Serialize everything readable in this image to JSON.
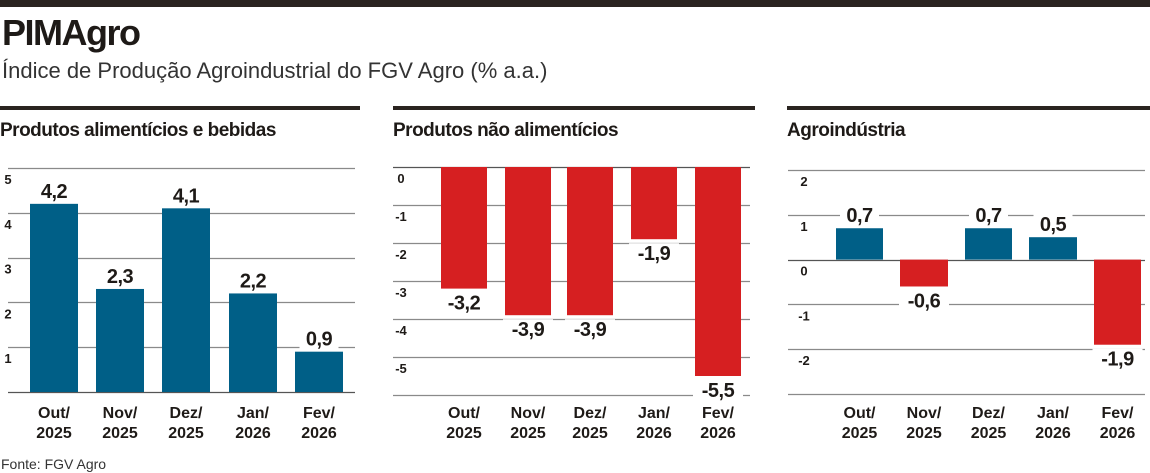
{
  "header": {
    "title": "PIMAgro",
    "subtitle": "Índice de Produção Agroindustrial do FGV Agro (% a.a.)"
  },
  "source": "Fonte: FGV Agro",
  "colors": {
    "positive": "#005f87",
    "negative": "#d61f21",
    "rule": "#2a2420",
    "grid": "#8a8a8a"
  },
  "chart_data": [
    {
      "type": "bar",
      "title": "Produtos alimentícios e bebidas",
      "categories": [
        [
          "Out/",
          "2025"
        ],
        [
          "Nov/",
          "2025"
        ],
        [
          "Dez/",
          "2025"
        ],
        [
          "Jan/",
          "2026"
        ],
        [
          "Fev/",
          "2026"
        ]
      ],
      "values": [
        4.2,
        2.3,
        4.1,
        2.2,
        0.9
      ],
      "data_labels": [
        "4,2",
        "2,3",
        "4,1",
        "2,2",
        "0,9"
      ],
      "yticks": [
        1,
        2,
        3,
        4,
        5
      ],
      "ylim": [
        0,
        5
      ],
      "grid": true
    },
    {
      "type": "bar",
      "title": "Produtos não alimentícios",
      "categories": [
        [
          "Out/",
          "2025"
        ],
        [
          "Nov/",
          "2025"
        ],
        [
          "Dez/",
          "2025"
        ],
        [
          "Jan/",
          "2026"
        ],
        [
          "Fev/",
          "2026"
        ]
      ],
      "values": [
        -3.2,
        -3.9,
        -3.9,
        -1.9,
        -5.5
      ],
      "data_labels": [
        "-3,2",
        "-3,9",
        "-3,9",
        "-1,9",
        "-5,5"
      ],
      "yticks": [
        0,
        -1,
        -2,
        -3,
        -4,
        -5
      ],
      "ylim": [
        -6,
        0
      ],
      "grid": true
    },
    {
      "type": "bar",
      "title": "Agroindústria",
      "categories": [
        [
          "Out/",
          "2025"
        ],
        [
          "Nov/",
          "2025"
        ],
        [
          "Dez/",
          "2025"
        ],
        [
          "Jan/",
          "2026"
        ],
        [
          "Fev/",
          "2026"
        ]
      ],
      "values": [
        0.7,
        -0.6,
        0.7,
        0.5,
        -1.9
      ],
      "data_labels": [
        "0,7",
        "-0,6",
        "0,7",
        "0,5",
        "-1,9"
      ],
      "yticks": [
        2,
        1,
        0,
        -1,
        -2
      ],
      "ylim": [
        -3,
        2
      ],
      "grid": true
    }
  ]
}
